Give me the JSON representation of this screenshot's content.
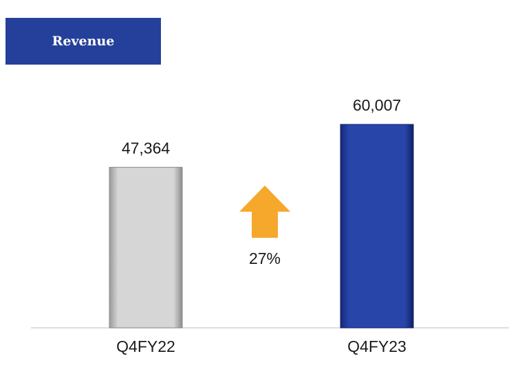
{
  "chart_data": {
    "type": "bar",
    "title": "Revenue",
    "categories": [
      "Q4FY22",
      "Q4FY23"
    ],
    "values": [
      47364,
      60007
    ],
    "value_labels": [
      "47,364",
      "60,007"
    ],
    "colors": [
      "#c4c4c4",
      "#2644a6"
    ],
    "annotation": "27%"
  }
}
